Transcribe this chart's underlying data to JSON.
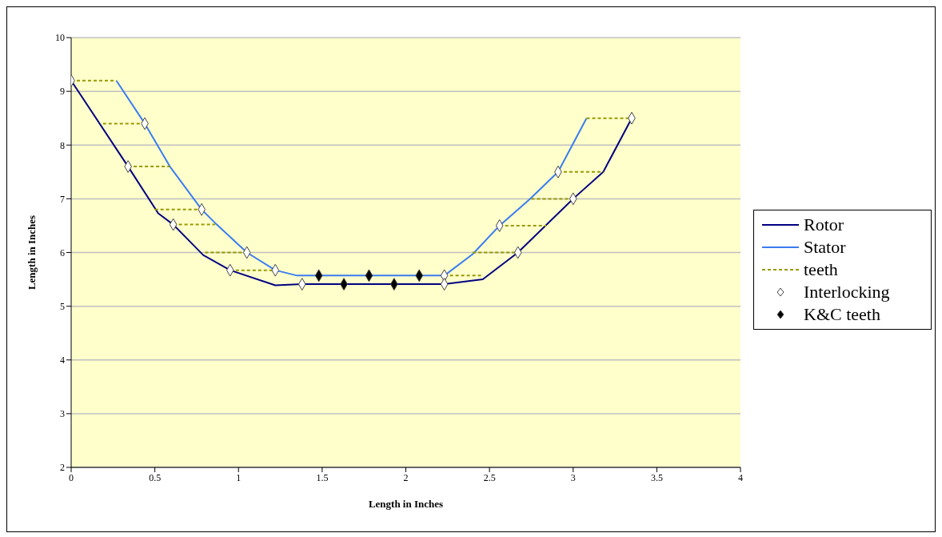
{
  "chart_data": {
    "type": "line",
    "xlabel": "Length in Inches",
    "ylabel": "Length in Inches",
    "xlim": [
      0,
      4
    ],
    "xticks": [
      0,
      0.5,
      1,
      1.5,
      2,
      2.5,
      3,
      3.5,
      4
    ],
    "ylim": [
      2,
      10
    ],
    "yticks": [
      2,
      3,
      4,
      5,
      6,
      7,
      8,
      9,
      10
    ],
    "grid": "y",
    "legend": "right",
    "series": [
      {
        "name": "Rotor",
        "color": "#000080",
        "marker": "none",
        "line_style": "solid",
        "x": [
          0,
          0.34,
          0.52,
          0.61,
          0.79,
          0.95,
          1.22,
          1.38,
          2.23,
          2.46,
          2.67,
          3.0,
          3.18,
          3.35
        ],
        "values": [
          9.2,
          7.6,
          6.73,
          6.52,
          5.95,
          5.67,
          5.39,
          5.41,
          5.41,
          5.5,
          6.0,
          7.0,
          7.5,
          8.5
        ]
      },
      {
        "name": "Stator",
        "color": "#3a7cf0",
        "marker": "none",
        "line_style": "solid",
        "x": [
          0.27,
          0.44,
          0.59,
          0.78,
          0.87,
          1.05,
          1.22,
          1.35,
          2.23,
          2.4,
          2.56,
          2.74,
          2.91,
          3.08
        ],
        "values": [
          9.2,
          8.4,
          7.6,
          6.8,
          6.52,
          6.0,
          5.67,
          5.57,
          5.57,
          5.97,
          6.5,
          6.99,
          7.5,
          8.5
        ]
      },
      {
        "name": "teeth",
        "color": "#999900",
        "marker": "none",
        "line_style": "dashed",
        "x": [
          0,
          0.27,
          null,
          0.19,
          0.44,
          null,
          0.34,
          0.59,
          null,
          0.5,
          0.78,
          null,
          0.61,
          0.86,
          null,
          0.8,
          1.05,
          null,
          0.95,
          1.22,
          null,
          2.23,
          2.46,
          null,
          2.4,
          2.67,
          null,
          2.56,
          2.84,
          null,
          2.75,
          3.0,
          null,
          2.91,
          3.18,
          null,
          3.08,
          3.35
        ],
        "values": [
          9.2,
          9.2,
          null,
          8.4,
          8.4,
          null,
          7.6,
          7.6,
          null,
          6.8,
          6.8,
          null,
          6.52,
          6.52,
          null,
          6.0,
          6.0,
          null,
          5.67,
          5.67,
          null,
          5.57,
          5.57,
          null,
          6.0,
          6.0,
          null,
          6.5,
          6.5,
          null,
          7.0,
          7.0,
          null,
          7.5,
          7.5,
          null,
          8.5,
          8.5
        ]
      },
      {
        "name": "Interlocking",
        "type": "scatter",
        "color": "#ffffff",
        "marker": "diamond",
        "x": [
          0,
          0.44,
          0.34,
          0.78,
          0.61,
          1.05,
          0.95,
          1.22,
          1.38,
          2.23,
          2.23,
          2.56,
          2.67,
          2.91,
          3.0,
          3.35
        ],
        "values": [
          9.2,
          8.4,
          7.6,
          6.8,
          6.52,
          6.0,
          5.67,
          5.67,
          5.41,
          5.57,
          5.41,
          6.5,
          6.0,
          7.5,
          7.0,
          8.5
        ]
      },
      {
        "name": "K&C teeth",
        "type": "scatter",
        "color": "#000000",
        "marker": "diamond",
        "x": [
          1.48,
          1.78,
          2.08,
          1.63,
          1.93
        ],
        "values": [
          5.57,
          5.57,
          5.57,
          5.41,
          5.41
        ]
      }
    ]
  }
}
